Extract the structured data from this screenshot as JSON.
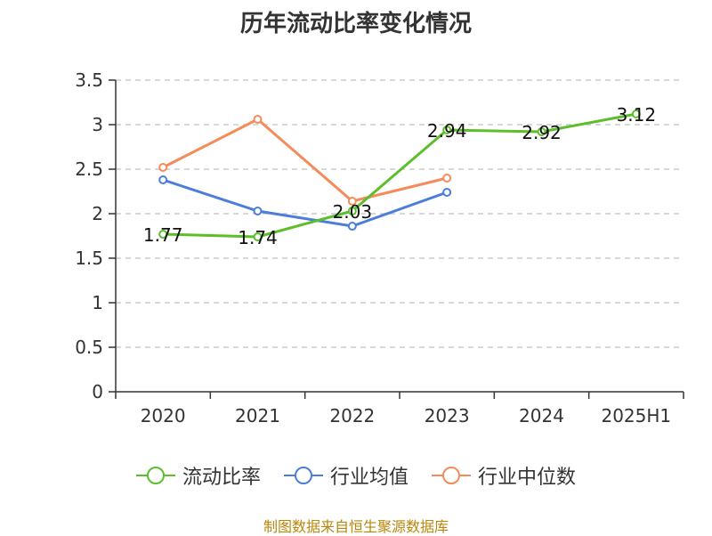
{
  "chart_data": {
    "type": "line",
    "title": "历年流动比率变化情况",
    "categories": [
      "2020",
      "2021",
      "2022",
      "2023",
      "2024",
      "2025H1"
    ],
    "ylim": [
      0,
      3.5
    ],
    "yticks": [
      "0",
      "0.5",
      "1",
      "1.5",
      "2",
      "2.5",
      "3",
      "3.5"
    ],
    "grid": true,
    "legend_position": "bottom",
    "series": [
      {
        "name": "流动比率",
        "color": "#5cbf2a",
        "values": [
          1.77,
          1.74,
          2.03,
          2.94,
          2.92,
          3.12
        ],
        "labels": [
          "1.77",
          "1.74",
          "2.03",
          "2.94",
          "2.92",
          "3.12"
        ]
      },
      {
        "name": "行业均值",
        "color": "#4a7ed9",
        "values": [
          2.38,
          2.03,
          1.86,
          2.24,
          null,
          null
        ]
      },
      {
        "name": "行业中位数",
        "color": "#f58b5a",
        "values": [
          2.52,
          3.06,
          2.14,
          2.4,
          null,
          null
        ]
      }
    ]
  },
  "footer": {
    "source": "制图数据来自恒生聚源数据库"
  }
}
